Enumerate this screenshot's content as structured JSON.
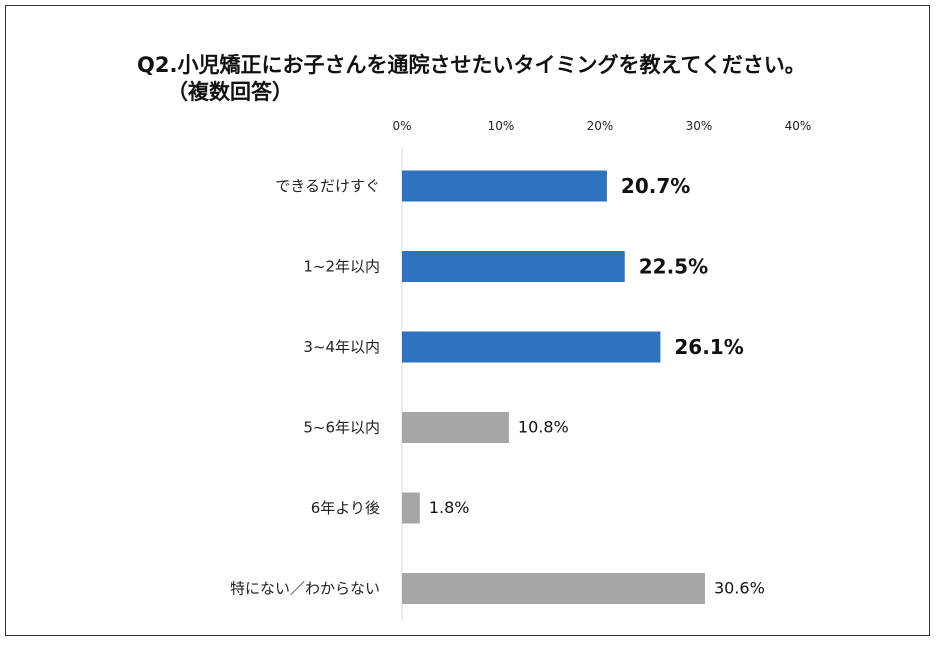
{
  "chart_data": {
    "type": "bar",
    "orientation": "horizontal",
    "title": "Q2.小児矯正にお子さんを通院させたいタイミングを教えてください。",
    "subtitle": "（複数回答）",
    "categories": [
      "できるだけすぐ",
      "1~2年以内",
      "3~4年以内",
      "5~6年以内",
      "6年より後",
      "特にない／わからない"
    ],
    "values": [
      20.7,
      22.5,
      26.1,
      10.8,
      1.8,
      30.6
    ],
    "value_labels": [
      "20.7%",
      "22.5%",
      "26.1%",
      "10.8%",
      "1.8%",
      "30.6%"
    ],
    "highlighted": [
      true,
      true,
      true,
      false,
      false,
      false
    ],
    "xlim": [
      0,
      40
    ],
    "xticks": [
      0,
      10,
      20,
      30,
      40
    ],
    "xtick_labels": [
      "0%",
      "10%",
      "20%",
      "30%",
      "40%"
    ],
    "axis_position": "top",
    "grid": false,
    "colors": {
      "highlight": "#2E72C0",
      "default": "#A6A6A6",
      "axis": "#D9D9D9"
    }
  }
}
